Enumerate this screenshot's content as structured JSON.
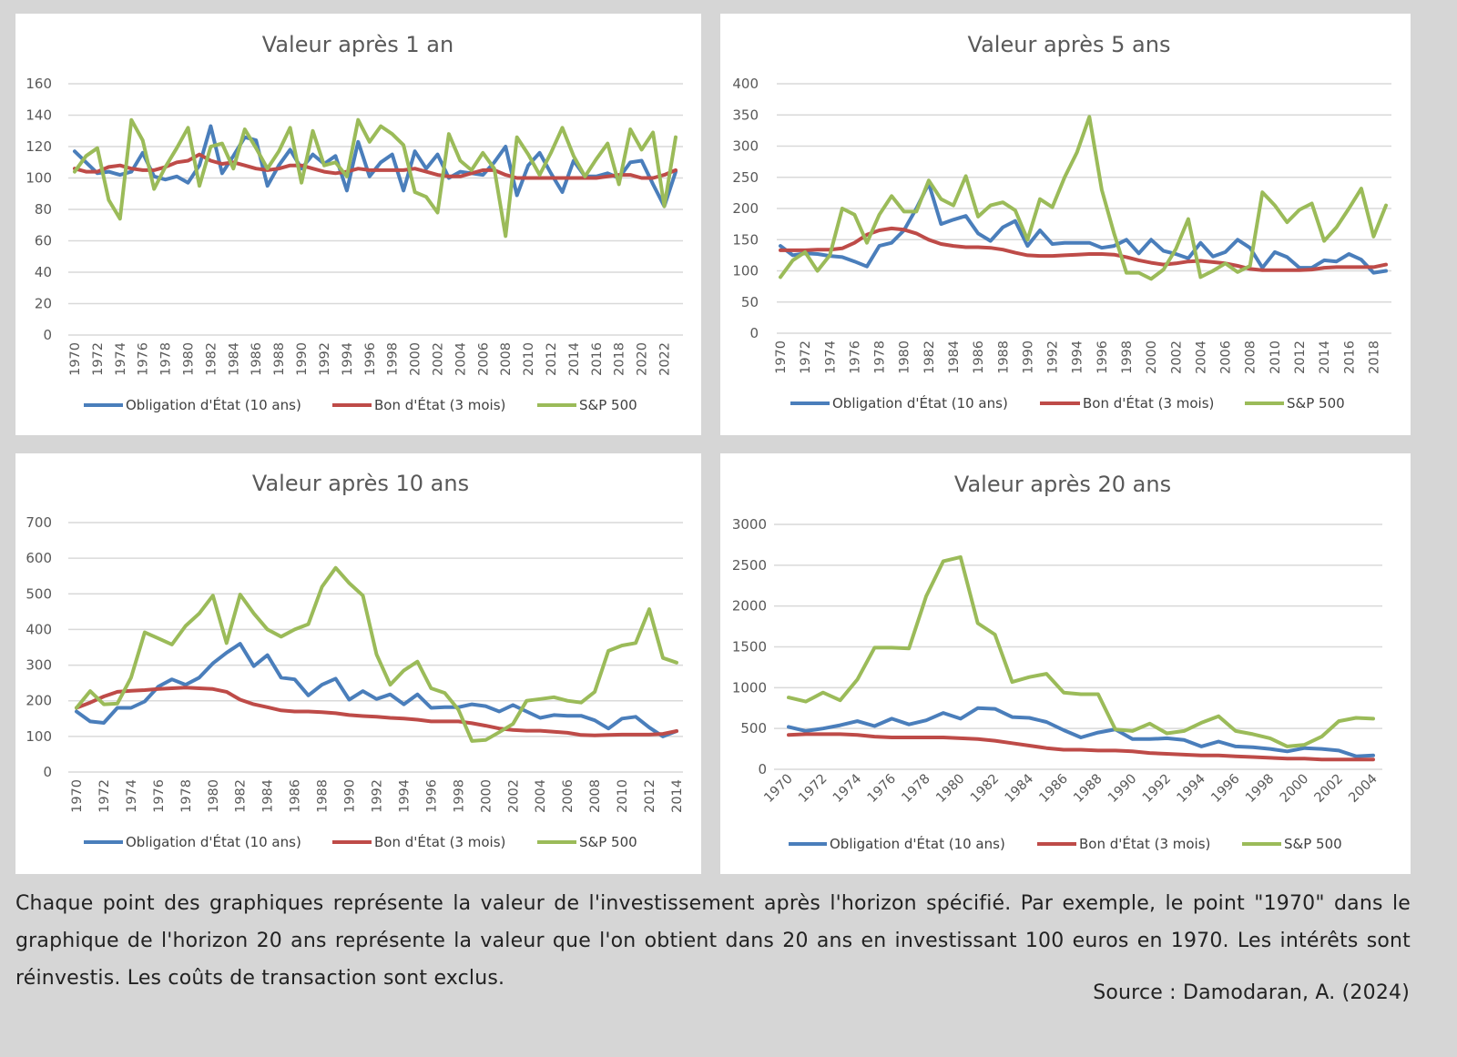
{
  "colors": {
    "bond10": "#4a7ebb",
    "bill3m": "#be4b48",
    "sp500": "#9bbb59"
  },
  "legend": [
    "Obligation d'État (10 ans)",
    "Bon d'État (3 mois)",
    "S&P 500"
  ],
  "chart_data": [
    {
      "type": "line",
      "title": "Valeur après 1 an",
      "ylim": [
        0,
        160
      ],
      "yticks": [
        0,
        20,
        40,
        60,
        80,
        100,
        120,
        140,
        160
      ],
      "x_start": 1970,
      "x_end": 2023,
      "xtick_step": 2,
      "legend_position": "bottom",
      "grid": true,
      "series": [
        {
          "name": "Obligation d'État (10 ans)",
          "values": [
            117,
            110,
            103,
            104,
            102,
            104,
            116,
            101,
            99,
            101,
            97,
            108,
            133,
            103,
            114,
            126,
            124,
            95,
            108,
            118,
            106,
            115,
            109,
            114,
            92,
            123,
            101,
            110,
            115,
            92,
            117,
            106,
            115,
            100,
            104,
            103,
            102,
            110,
            120,
            89,
            108,
            116,
            103,
            91,
            111,
            101,
            101,
            103,
            100,
            110,
            111,
            96,
            82,
            104
          ]
        },
        {
          "name": "Bon d'État (3 mois)",
          "values": [
            106,
            104,
            104,
            107,
            108,
            106,
            105,
            105,
            107,
            110,
            111,
            115,
            111,
            109,
            110,
            108,
            106,
            105,
            106,
            108,
            108,
            106,
            104,
            103,
            104,
            106,
            105,
            105,
            105,
            105,
            106,
            104,
            102,
            101,
            101,
            103,
            105,
            105,
            102,
            100,
            100,
            100,
            100,
            100,
            100,
            100,
            100,
            101,
            102,
            102,
            100,
            100,
            102,
            105
          ]
        },
        {
          "name": "S&P 500",
          "values": [
            104,
            114,
            119,
            86,
            74,
            137,
            124,
            93,
            107,
            119,
            132,
            95,
            120,
            122,
            106,
            131,
            119,
            106,
            117,
            132,
            97,
            130,
            108,
            110,
            101,
            137,
            123,
            133,
            128,
            121,
            91,
            88,
            78,
            128,
            111,
            105,
            116,
            106,
            63,
            126,
            115,
            102,
            116,
            132,
            114,
            101,
            112,
            122,
            96,
            131,
            118,
            129,
            82,
            126
          ]
        }
      ]
    },
    {
      "type": "line",
      "title": "Valeur après 5 ans",
      "ylim": [
        0,
        400
      ],
      "yticks": [
        0,
        50,
        100,
        150,
        200,
        250,
        300,
        350,
        400
      ],
      "x_start": 1970,
      "x_end": 2019,
      "xtick_step": 2,
      "legend_position": "bottom",
      "grid": true,
      "series": [
        {
          "name": "Obligation d'État (10 ans)",
          "values": [
            140,
            125,
            128,
            127,
            124,
            122,
            115,
            107,
            140,
            145,
            165,
            200,
            240,
            175,
            182,
            188,
            160,
            148,
            170,
            180,
            140,
            165,
            143,
            145,
            145,
            145,
            137,
            140,
            150,
            128,
            150,
            132,
            127,
            120,
            145,
            123,
            130,
            150,
            137,
            105,
            130,
            122,
            105,
            105,
            117,
            115,
            127,
            118,
            97,
            100
          ]
        },
        {
          "name": "Bon d'État (3 mois)",
          "values": [
            133,
            133,
            133,
            134,
            134,
            136,
            145,
            158,
            165,
            168,
            166,
            160,
            150,
            143,
            140,
            138,
            138,
            137,
            134,
            129,
            125,
            124,
            124,
            125,
            126,
            127,
            127,
            126,
            122,
            117,
            113,
            110,
            112,
            115,
            116,
            114,
            112,
            108,
            103,
            101,
            101,
            101,
            101,
            102,
            105,
            106,
            106,
            106,
            106,
            110
          ]
        },
        {
          "name": "S&P 500",
          "values": [
            90,
            117,
            130,
            100,
            125,
            200,
            190,
            145,
            190,
            220,
            195,
            195,
            245,
            215,
            205,
            252,
            187,
            205,
            210,
            197,
            150,
            215,
            202,
            250,
            290,
            347,
            230,
            160,
            97,
            97,
            87,
            102,
            135,
            183,
            90,
            100,
            112,
            98,
            108,
            226,
            205,
            178,
            198,
            208,
            148,
            170,
            200,
            232,
            155,
            205
          ]
        }
      ]
    },
    {
      "type": "line",
      "title": "Valeur après 10 ans",
      "ylim": [
        0,
        700
      ],
      "yticks": [
        0,
        100,
        200,
        300,
        400,
        500,
        600,
        700
      ],
      "x_start": 1970,
      "x_end": 2014,
      "xtick_step": 2,
      "legend_position": "bottom",
      "grid": true,
      "series": [
        {
          "name": "Obligation d'État (10 ans)",
          "values": [
            170,
            142,
            138,
            180,
            180,
            198,
            240,
            260,
            245,
            265,
            305,
            335,
            360,
            297,
            328,
            265,
            260,
            215,
            245,
            262,
            203,
            227,
            205,
            218,
            190,
            218,
            180,
            182,
            182,
            190,
            185,
            170,
            188,
            170,
            152,
            160,
            158,
            158,
            145,
            122,
            150,
            155,
            125,
            100,
            115
          ]
        },
        {
          "name": "Bon d'État (3 mois)",
          "values": [
            180,
            195,
            212,
            225,
            228,
            230,
            233,
            235,
            237,
            235,
            233,
            225,
            203,
            190,
            182,
            173,
            170,
            170,
            168,
            165,
            160,
            157,
            155,
            152,
            150,
            147,
            142,
            142,
            142,
            137,
            130,
            122,
            118,
            116,
            116,
            113,
            110,
            104,
            103,
            104,
            105,
            105,
            105,
            107,
            115
          ]
        },
        {
          "name": "S&P 500",
          "values": [
            180,
            227,
            190,
            192,
            265,
            392,
            375,
            358,
            410,
            445,
            495,
            362,
            498,
            445,
            400,
            380,
            400,
            415,
            520,
            573,
            530,
            495,
            330,
            245,
            285,
            310,
            235,
            222,
            175,
            87,
            90,
            112,
            135,
            200,
            205,
            210,
            200,
            195,
            225,
            340,
            355,
            362,
            457,
            320,
            307
          ]
        }
      ]
    },
    {
      "type": "line",
      "title": "Valeur après 20 ans",
      "ylim": [
        0,
        3000
      ],
      "yticks": [
        0,
        500,
        1000,
        1500,
        2000,
        2500,
        3000
      ],
      "x_start": 1970,
      "x_end": 2004,
      "xtick_step": 2,
      "legend_position": "bottom",
      "grid": true,
      "series": [
        {
          "name": "Obligation d'État (10 ans)",
          "values": [
            520,
            470,
            500,
            540,
            590,
            530,
            620,
            550,
            600,
            690,
            620,
            750,
            740,
            640,
            630,
            580,
            480,
            390,
            450,
            490,
            370,
            370,
            380,
            360,
            280,
            340,
            280,
            270,
            250,
            220,
            260,
            250,
            230,
            160,
            170
          ]
        },
        {
          "name": "Bon d'État (3 mois)",
          "values": [
            420,
            430,
            430,
            430,
            420,
            400,
            390,
            390,
            390,
            390,
            380,
            370,
            350,
            320,
            290,
            260,
            240,
            240,
            230,
            230,
            220,
            200,
            190,
            180,
            170,
            170,
            160,
            150,
            140,
            130,
            130,
            120,
            120,
            120,
            120
          ]
        },
        {
          "name": "S&P 500",
          "values": [
            880,
            830,
            940,
            845,
            1100,
            1490,
            1490,
            1480,
            2120,
            2550,
            2600,
            1790,
            1650,
            1070,
            1130,
            1170,
            940,
            920,
            920,
            490,
            470,
            560,
            440,
            470,
            570,
            650,
            470,
            430,
            380,
            280,
            300,
            400,
            590,
            630,
            620
          ]
        }
      ]
    }
  ],
  "caption": "Chaque point des graphiques représente la valeur de l'investissement après l'horizon spécifié. Par exemple, le point \"1970\" dans le graphique de l'horizon 20 ans représente la valeur que l'on obtient dans 20 ans en investissant 100 euros en 1970. Les intérêts sont réinvestis. Les coûts de transaction sont exclus.",
  "source": "Source : Damodaran, A. (2024)"
}
